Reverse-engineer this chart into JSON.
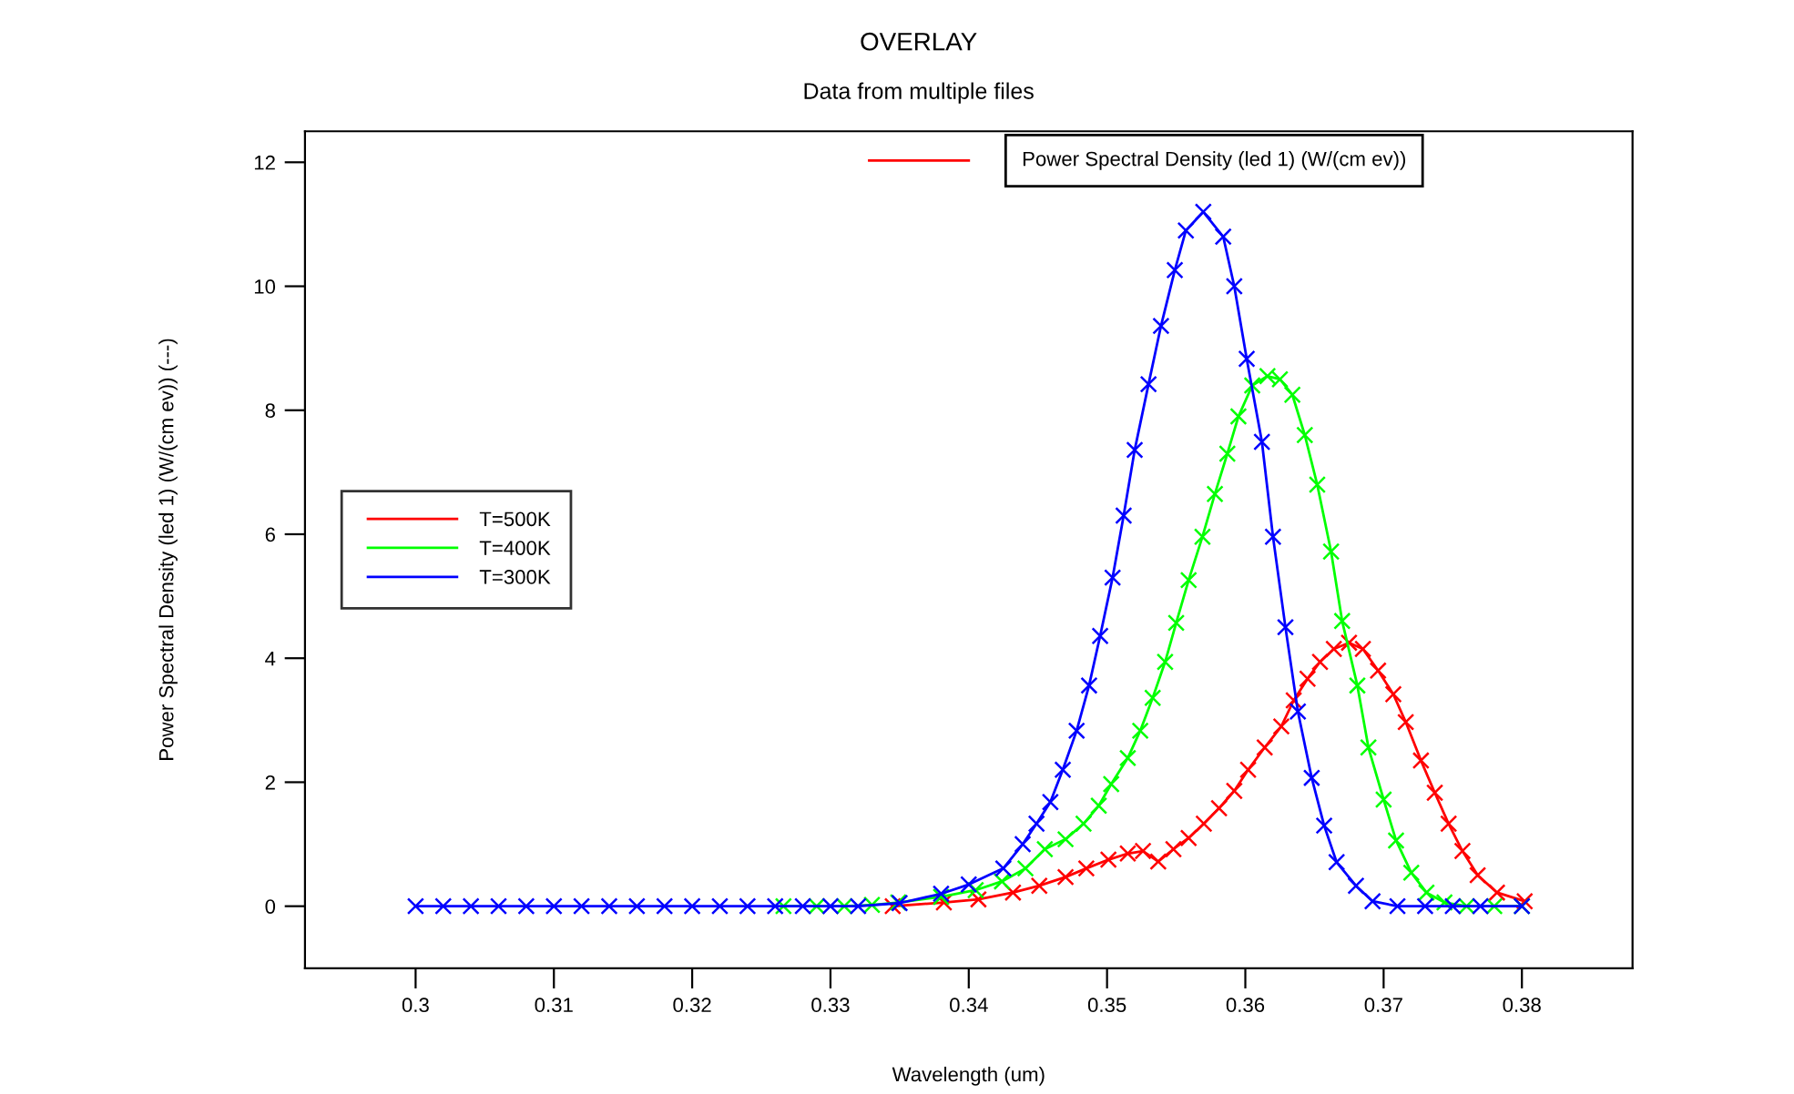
{
  "chart_data": {
    "type": "line",
    "title": "OVERLAY",
    "subtitle": "Data from multiple files",
    "xlabel": "Wavelength (um)",
    "ylabel": "Power Spectral Density (led 1) (W/(cm ev)) (---)",
    "annotations": [
      "Power Spectral Density (led 1) (W/(cm ev))"
    ],
    "xlim": [
      0.292,
      0.388
    ],
    "ylim": [
      -1,
      12.5
    ],
    "xticks": [
      {
        "value": 0.3,
        "label": "0.3"
      },
      0.31,
      0.32,
      0.33,
      0.34,
      0.35,
      0.36,
      0.37,
      0.38
    ],
    "yticks": [
      0,
      2,
      4,
      6,
      8,
      10,
      12
    ],
    "grid": false,
    "legend": "left",
    "marker": "cross",
    "line_style": "solid",
    "series": [
      {
        "name": "T=500K",
        "color": "#ff0000",
        "x": [
          0.3345,
          0.3382,
          0.3407,
          0.3432,
          0.3451,
          0.347,
          0.3485,
          0.3501,
          0.3515,
          0.3526,
          0.3537,
          0.3548,
          0.3559,
          0.357,
          0.3581,
          0.3592,
          0.3602,
          0.3614,
          0.3626,
          0.3635,
          0.3645,
          0.3654,
          0.3664,
          0.3675,
          0.3685,
          0.3696,
          0.3707,
          0.3716,
          0.3727,
          0.3737,
          0.3747,
          0.3757,
          0.3768,
          0.3782,
          0.3802
        ],
        "values": [
          0,
          0.06,
          0.11,
          0.22,
          0.33,
          0.47,
          0.61,
          0.75,
          0.85,
          0.89,
          0.72,
          0.92,
          1.1,
          1.33,
          1.58,
          1.86,
          2.2,
          2.56,
          2.9,
          3.32,
          3.67,
          3.94,
          4.15,
          4.25,
          4.15,
          3.8,
          3.42,
          2.97,
          2.35,
          1.83,
          1.33,
          0.89,
          0.5,
          0.22,
          0.08
        ]
      },
      {
        "name": "T=400K",
        "color": "#00ff00",
        "x": [
          0.3266,
          0.329,
          0.331,
          0.333,
          0.3349,
          0.338,
          0.3405,
          0.3424,
          0.3441,
          0.3455,
          0.347,
          0.3483,
          0.3494,
          0.3503,
          0.3515,
          0.3524,
          0.3533,
          0.3542,
          0.355,
          0.3559,
          0.3569,
          0.3578,
          0.3587,
          0.3595,
          0.3605,
          0.3616,
          0.3625,
          0.3634,
          0.3643,
          0.3652,
          0.3662,
          0.367,
          0.3681,
          0.3689,
          0.37,
          0.3709,
          0.372,
          0.3731,
          0.3744,
          0.376,
          0.378,
          0.38
        ],
        "values": [
          0,
          0,
          0,
          0.02,
          0.06,
          0.15,
          0.26,
          0.4,
          0.61,
          0.92,
          1.08,
          1.33,
          1.62,
          1.97,
          2.39,
          2.83,
          3.36,
          3.94,
          4.57,
          5.26,
          5.96,
          6.65,
          7.3,
          7.9,
          8.4,
          8.55,
          8.5,
          8.25,
          7.6,
          6.8,
          5.72,
          4.6,
          3.56,
          2.56,
          1.72,
          1.06,
          0.54,
          0.22,
          0.06,
          0,
          0,
          0
        ]
      },
      {
        "name": "T=300K",
        "color": "#0000ff",
        "x": [
          0.3,
          0.302,
          0.304,
          0.306,
          0.308,
          0.31,
          0.312,
          0.314,
          0.316,
          0.318,
          0.32,
          0.322,
          0.324,
          0.326,
          0.328,
          0.33,
          0.332,
          0.335,
          0.338,
          0.34,
          0.3425,
          0.3439,
          0.3449,
          0.3459,
          0.3468,
          0.3478,
          0.3487,
          0.3495,
          0.3504,
          0.3512,
          0.352,
          0.353,
          0.3539,
          0.3549,
          0.3557,
          0.35696,
          0.3584,
          0.3592,
          0.3601,
          0.3612,
          0.362,
          0.3629,
          0.3638,
          0.3648,
          0.3657,
          0.3666,
          0.368,
          0.3692,
          0.371,
          0.373,
          0.375,
          0.377,
          0.38
        ],
        "values": [
          0,
          0,
          0,
          0,
          0,
          0,
          0,
          0,
          0,
          0,
          0,
          0,
          0,
          0,
          0,
          0,
          0,
          0.05,
          0.2,
          0.35,
          0.61,
          1.0,
          1.33,
          1.68,
          2.2,
          2.83,
          3.56,
          4.36,
          5.3,
          6.3,
          7.36,
          8.42,
          9.36,
          10.26,
          10.9,
          11.2,
          10.8,
          10.0,
          8.83,
          7.49,
          5.96,
          4.5,
          3.14,
          2.07,
          1.3,
          0.71,
          0.33,
          0.08,
          0,
          0,
          0,
          0,
          0
        ]
      }
    ]
  }
}
